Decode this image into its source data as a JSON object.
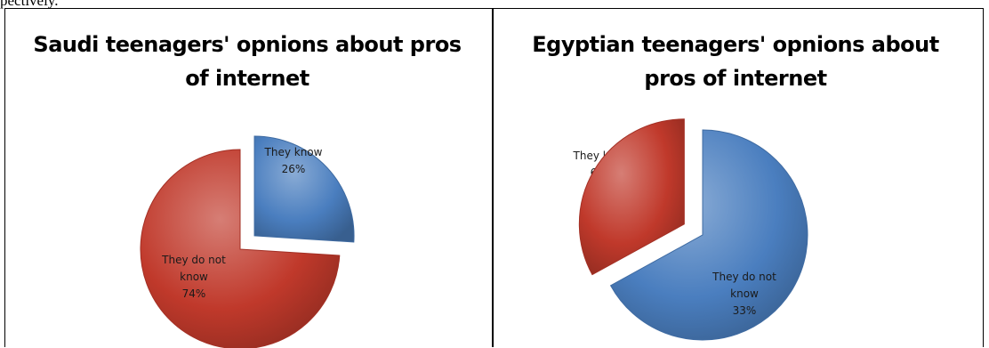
{
  "page": {
    "top_text": "pectively."
  },
  "chart_data": [
    {
      "type": "pie",
      "title": "Saudi teenagers' opnions about pros\nof internet",
      "slices": [
        {
          "label": "They  know",
          "value": 26,
          "pct_label": "26%",
          "color": "#4a7ebf",
          "exploded": true
        },
        {
          "label": "They do not\nknow",
          "value": 74,
          "pct_label": "74%",
          "color": "#c0392b",
          "exploded": false
        }
      ]
    },
    {
      "type": "pie",
      "title": "Egyptian teenagers' opnions about\npros of internet",
      "slices": [
        {
          "label": "They  know",
          "value": 67,
          "pct_label": "67%",
          "color": "#4a7ebf",
          "exploded": false
        },
        {
          "label": "They do not\nknow",
          "value": 33,
          "pct_label": "33%",
          "color": "#c0392b",
          "exploded": true
        }
      ]
    }
  ]
}
